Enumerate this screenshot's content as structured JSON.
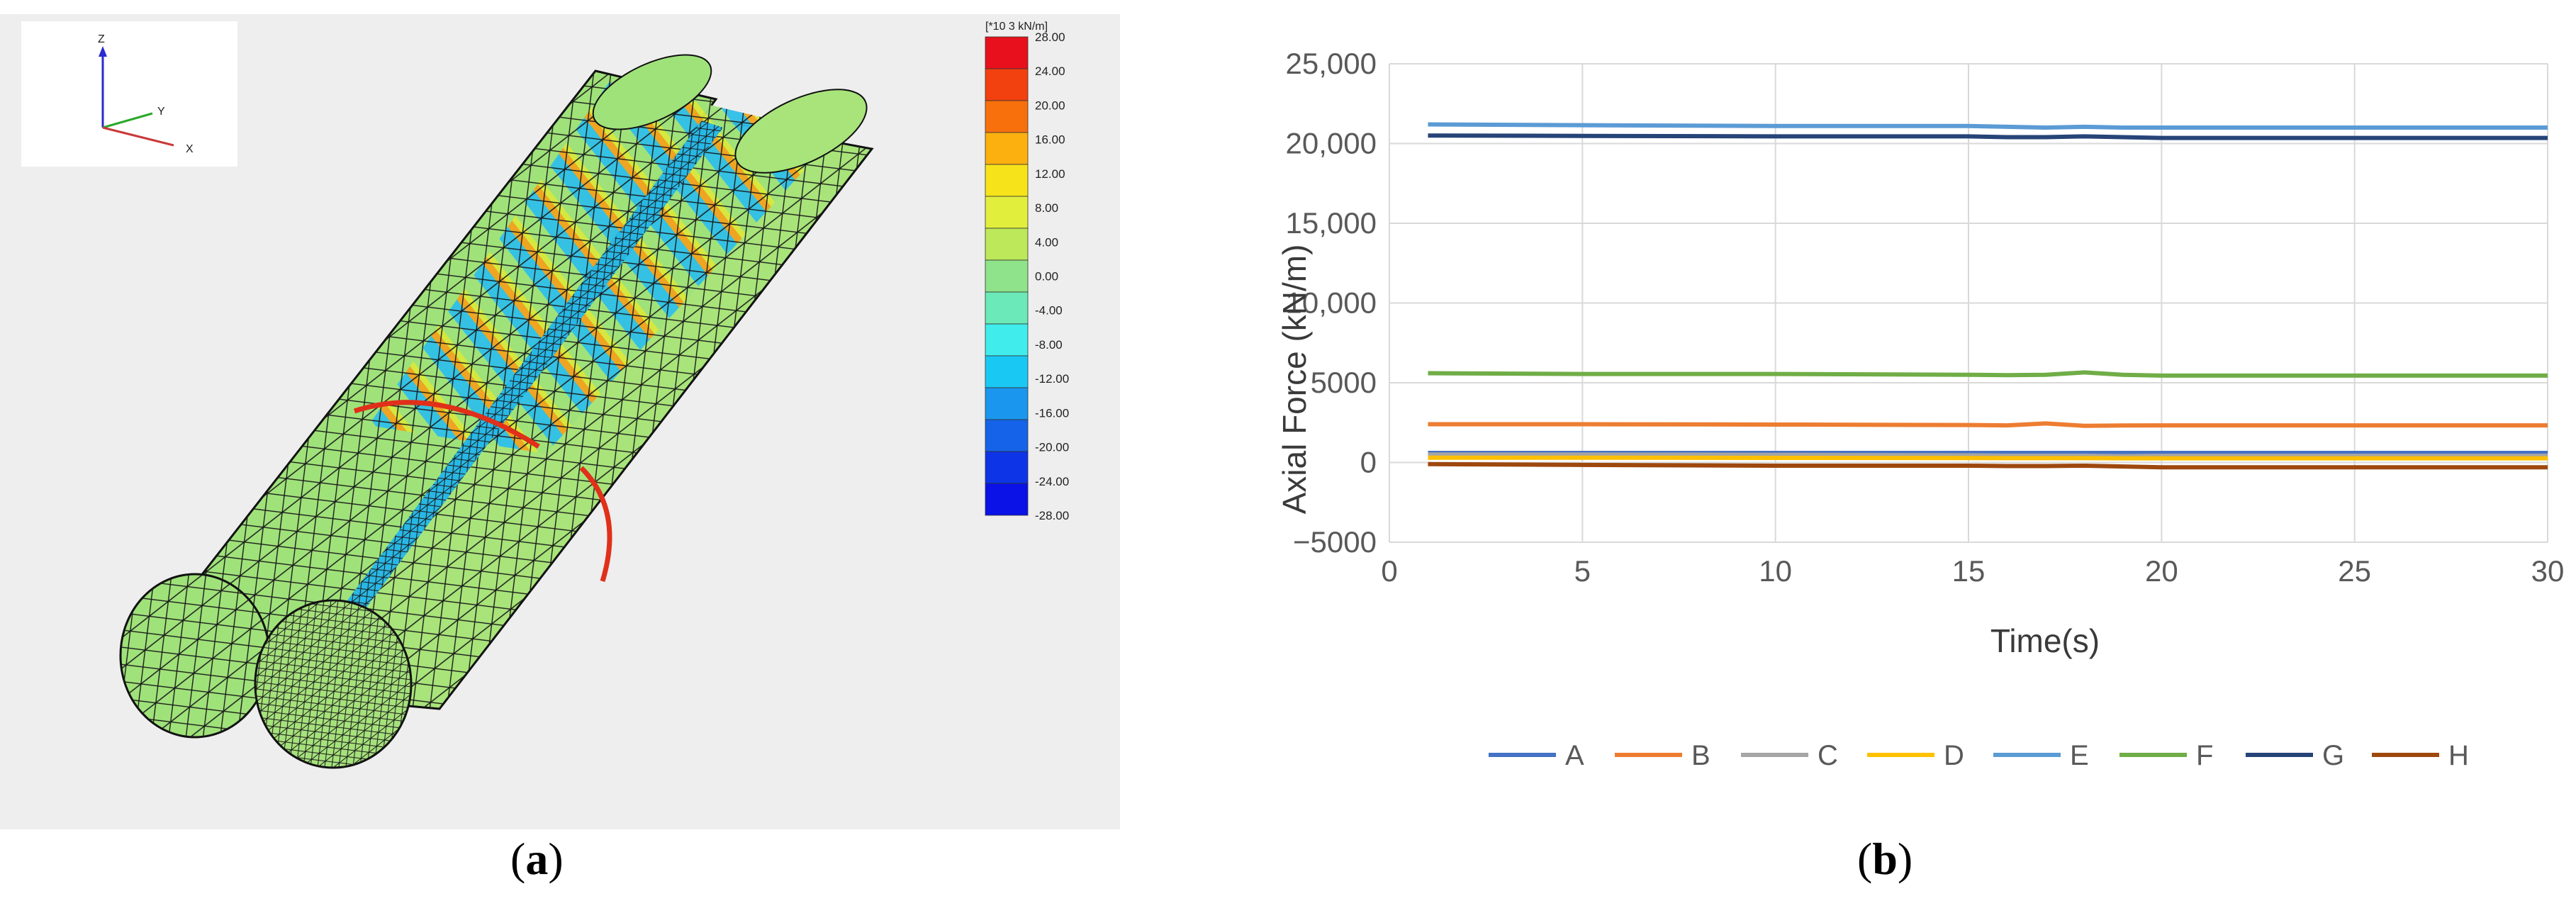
{
  "panel_a": {
    "caption": {
      "open": "(",
      "letter": "a",
      "close": ")"
    },
    "triad": {
      "z": "Z",
      "y": "Y",
      "x": "X"
    },
    "colorbar": {
      "title": "[*10 3 kN/m]",
      "labels": [
        "28.00",
        "24.00",
        "20.00",
        "16.00",
        "12.00",
        "8.00",
        "4.00",
        "0.00",
        "-4.00",
        "-8.00",
        "-12.00",
        "-16.00",
        "-20.00",
        "-24.00",
        "-28.00"
      ],
      "colors": [
        "#e8101c",
        "#f2400f",
        "#f8700c",
        "#fbb010",
        "#f6e31a",
        "#e2ee3c",
        "#bce85a",
        "#8fe38a",
        "#6ce9b8",
        "#40ecec",
        "#1ac8f4",
        "#1b96ee",
        "#1463e8",
        "#0d34e6",
        "#0a12e8"
      ]
    }
  },
  "panel_b": {
    "caption": {
      "open": "(",
      "letter": "b",
      "close": ")"
    },
    "chart_data": {
      "type": "line",
      "xlabel": "Time(s)",
      "ylabel": "Axial Force    (kN/m)",
      "xlim": [
        0,
        30
      ],
      "ylim": [
        -5000,
        25000
      ],
      "xticks": [
        "0",
        "5",
        "10",
        "15",
        "20",
        "25",
        "30"
      ],
      "yticks": [
        "25,000",
        "20,000",
        "15,000",
        "10,000",
        "5000",
        "0",
        "−5000"
      ],
      "grid": true,
      "legend_position": "bottom",
      "x": [
        1,
        5,
        10,
        15,
        16,
        17,
        18,
        19,
        20,
        25,
        30
      ],
      "series": [
        {
          "name": "A",
          "color": "#4472C4",
          "values": [
            600,
            600,
            600,
            600,
            600,
            600,
            600,
            600,
            600,
            600,
            600
          ]
        },
        {
          "name": "B",
          "color": "#ED7D31",
          "values": [
            2400,
            2400,
            2380,
            2350,
            2330,
            2450,
            2300,
            2320,
            2330,
            2330,
            2330
          ]
        },
        {
          "name": "C",
          "color": "#A5A5A5",
          "values": [
            500,
            500,
            480,
            450,
            430,
            430,
            430,
            400,
            420,
            420,
            420
          ]
        },
        {
          "name": "D",
          "color": "#FFC000",
          "values": [
            300,
            300,
            290,
            280,
            270,
            270,
            270,
            260,
            260,
            260,
            260
          ]
        },
        {
          "name": "E",
          "color": "#5B9BD5",
          "values": [
            21200,
            21150,
            21100,
            21100,
            21050,
            21000,
            21050,
            21000,
            21000,
            21000,
            21000
          ]
        },
        {
          "name": "F",
          "color": "#70AD47",
          "values": [
            5600,
            5550,
            5550,
            5500,
            5480,
            5500,
            5650,
            5500,
            5450,
            5450,
            5450
          ]
        },
        {
          "name": "G",
          "color": "#264478",
          "values": [
            20500,
            20480,
            20450,
            20450,
            20400,
            20400,
            20450,
            20400,
            20350,
            20350,
            20350
          ]
        },
        {
          "name": "H",
          "color": "#9E480E",
          "values": [
            -100,
            -150,
            -200,
            -200,
            -220,
            -220,
            -200,
            -250,
            -300,
            -300,
            -300
          ]
        }
      ]
    }
  }
}
